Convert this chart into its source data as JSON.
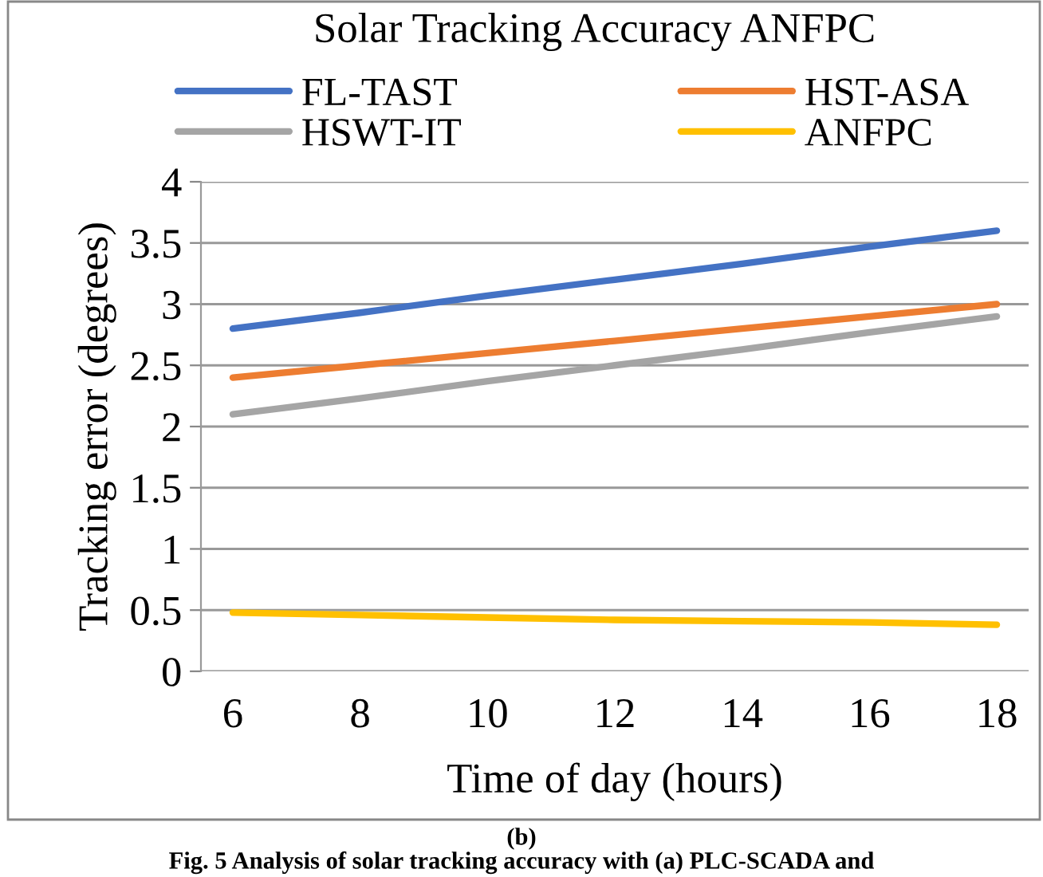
{
  "chart_data": {
    "type": "line",
    "title": "Solar Tracking Accuracy ANFPC",
    "xlabel": "Time of day (hours)",
    "ylabel": "Tracking error (degrees)",
    "x": [
      6,
      8,
      10,
      12,
      14,
      16,
      18
    ],
    "series": [
      {
        "name": "FL-TAST",
        "color": "#4472c4",
        "values": [
          2.8,
          2.93,
          3.07,
          3.2,
          3.33,
          3.47,
          3.6
        ]
      },
      {
        "name": "HST-ASA",
        "color": "#ed7d31",
        "values": [
          2.4,
          2.5,
          2.6,
          2.7,
          2.8,
          2.9,
          3.0
        ]
      },
      {
        "name": "HSWT-IT",
        "color": "#a5a5a5",
        "values": [
          2.1,
          2.23,
          2.37,
          2.5,
          2.63,
          2.77,
          2.9
        ]
      },
      {
        "name": "ANFPC",
        "color": "#ffc000",
        "values": [
          0.48,
          0.46,
          0.44,
          0.42,
          0.41,
          0.4,
          0.38
        ]
      }
    ],
    "xlim": [
      5.5,
      18.5
    ],
    "xticks": [
      6,
      8,
      10,
      12,
      14,
      16,
      18
    ],
    "ylim": [
      0,
      4
    ],
    "yticks": [
      0,
      0.5,
      1,
      1.5,
      2,
      2.5,
      3,
      3.5,
      4
    ],
    "grid": "y",
    "legend": "top",
    "marker": "none",
    "line_style": "solid",
    "annotations": [
      "(b)",
      "Fig. 5 Analysis of solar tracking accuracy with (a) PLC-SCADA and"
    ]
  }
}
